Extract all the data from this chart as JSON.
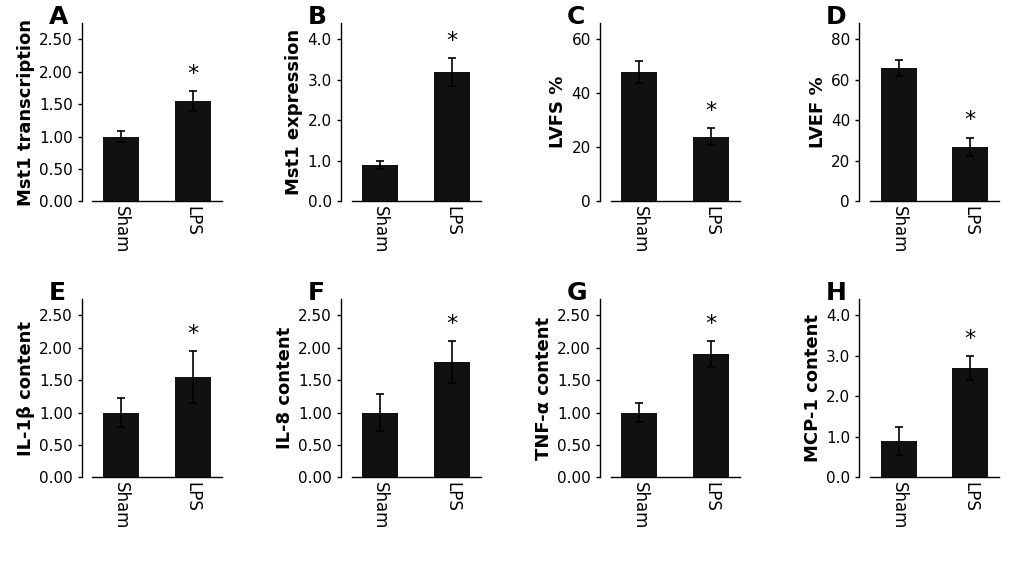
{
  "panels": [
    {
      "label": "A",
      "ylabel": "Mst1 transcription",
      "categories": [
        "Sham",
        "LPS"
      ],
      "values": [
        1.0,
        1.55
      ],
      "errors": [
        0.08,
        0.15
      ],
      "ylim": [
        0,
        2.75
      ],
      "yticks": [
        0.0,
        0.5,
        1.0,
        1.5,
        2.0,
        2.5
      ],
      "yticklabels": [
        "0.00",
        "0.50",
        "1.00",
        "1.50",
        "2.00",
        "2.50"
      ],
      "sig_bar": [
        1
      ],
      "bar_color": "#111111"
    },
    {
      "label": "B",
      "ylabel": "Mst1 expression",
      "categories": [
        "Sham",
        "LPS"
      ],
      "values": [
        0.9,
        3.2
      ],
      "errors": [
        0.1,
        0.35
      ],
      "ylim": [
        0,
        4.4
      ],
      "yticks": [
        0.0,
        1.0,
        2.0,
        3.0,
        4.0
      ],
      "yticklabels": [
        "0.0",
        "1.0",
        "2.0",
        "3.0",
        "4.0"
      ],
      "sig_bar": [
        1
      ],
      "bar_color": "#111111"
    },
    {
      "label": "C",
      "ylabel": "LVFS %",
      "categories": [
        "Sham",
        "LPS"
      ],
      "values": [
        48.0,
        24.0
      ],
      "errors": [
        4.0,
        3.0
      ],
      "ylim": [
        0,
        66
      ],
      "yticks": [
        0,
        20,
        40,
        60
      ],
      "yticklabels": [
        "0",
        "20",
        "40",
        "60"
      ],
      "sig_bar": [
        1
      ],
      "bar_color": "#111111"
    },
    {
      "label": "D",
      "ylabel": "LVEF %",
      "categories": [
        "Sham",
        "LPS"
      ],
      "values": [
        66.0,
        27.0
      ],
      "errors": [
        4.0,
        4.5
      ],
      "ylim": [
        0,
        88
      ],
      "yticks": [
        0,
        20,
        40,
        60,
        80
      ],
      "yticklabels": [
        "0",
        "20",
        "40",
        "60",
        "80"
      ],
      "sig_bar": [
        1
      ],
      "bar_color": "#111111"
    },
    {
      "label": "E",
      "ylabel": "IL-1β content",
      "categories": [
        "Sham",
        "LPS"
      ],
      "values": [
        1.0,
        1.55
      ],
      "errors": [
        0.22,
        0.4
      ],
      "ylim": [
        0,
        2.75
      ],
      "yticks": [
        0.0,
        0.5,
        1.0,
        1.5,
        2.0,
        2.5
      ],
      "yticklabels": [
        "0.00",
        "0.50",
        "1.00",
        "1.50",
        "2.00",
        "2.50"
      ],
      "sig_bar": [
        1
      ],
      "bar_color": "#111111"
    },
    {
      "label": "F",
      "ylabel": "IL-8 content",
      "categories": [
        "Sham",
        "LPS"
      ],
      "values": [
        1.0,
        1.78
      ],
      "errors": [
        0.28,
        0.32
      ],
      "ylim": [
        0,
        2.75
      ],
      "yticks": [
        0.0,
        0.5,
        1.0,
        1.5,
        2.0,
        2.5
      ],
      "yticklabels": [
        "0.00",
        "0.50",
        "1.00",
        "1.50",
        "2.00",
        "2.50"
      ],
      "sig_bar": [
        1
      ],
      "bar_color": "#111111"
    },
    {
      "label": "G",
      "ylabel": "TNF-α content",
      "categories": [
        "Sham",
        "LPS"
      ],
      "values": [
        1.0,
        1.9
      ],
      "errors": [
        0.15,
        0.2
      ],
      "ylim": [
        0,
        2.75
      ],
      "yticks": [
        0.0,
        0.5,
        1.0,
        1.5,
        2.0,
        2.5
      ],
      "yticklabels": [
        "0.00",
        "0.50",
        "1.00",
        "1.50",
        "2.00",
        "2.50"
      ],
      "sig_bar": [
        1
      ],
      "bar_color": "#111111"
    },
    {
      "label": "H",
      "ylabel": "MCP-1 content",
      "categories": [
        "Sham",
        "LPS"
      ],
      "values": [
        0.9,
        2.7
      ],
      "errors": [
        0.35,
        0.3
      ],
      "ylim": [
        0,
        4.4
      ],
      "yticks": [
        0.0,
        1.0,
        2.0,
        3.0,
        4.0
      ],
      "yticklabels": [
        "0.0",
        "1.0",
        "2.0",
        "3.0",
        "4.0"
      ],
      "sig_bar": [
        1
      ],
      "bar_color": "#111111"
    }
  ],
  "background_color": "#ffffff",
  "bar_width": 0.5,
  "tick_fontsize": 11,
  "ylabel_fontsize": 13,
  "panel_label_fontsize": 18,
  "asterisk_fontsize": 16
}
